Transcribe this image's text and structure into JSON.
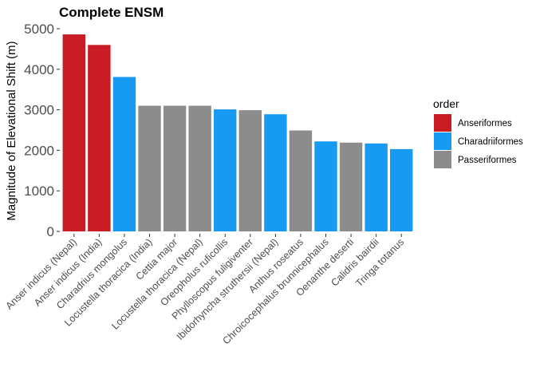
{
  "chart_data": {
    "type": "bar",
    "title": "Complete ENSM",
    "xlabel": "",
    "ylabel": "Magnitude of Elevational Shift (m)",
    "ylim": [
      0,
      5000
    ],
    "yticks": [
      0,
      1000,
      2000,
      3000,
      4000,
      5000
    ],
    "grid": false,
    "legend": {
      "title": "order",
      "placement": "right",
      "entries": [
        {
          "name": "Anseriformes",
          "color": "#c91c24"
        },
        {
          "name": "Charadriiformes",
          "color": "#179bf2"
        },
        {
          "name": "Passeriformes",
          "color": "#8c8c8c"
        }
      ]
    },
    "categories": [
      "Anser indicus (Nepal)",
      "Anser indicus (India)",
      "Charadrius mongolus",
      "Locustella thoracica (India)",
      "Cettia major",
      "Locustella thoracica (Nepal)",
      "Oreopholus ruficollis",
      "Phylloscopus fuligiventer",
      "Ibidorhyncha struthersii (Nepal)",
      "Anthus roseatus",
      "Chroicocephalus brunnicephalus",
      "Oenanthe deserti",
      "Calidris bairdii",
      "Tringa totanus"
    ],
    "values": [
      4860,
      4600,
      3810,
      3100,
      3100,
      3100,
      3010,
      2990,
      2890,
      2490,
      2220,
      2190,
      2170,
      2030
    ],
    "groups": [
      "Anseriformes",
      "Anseriformes",
      "Charadriiformes",
      "Passeriformes",
      "Passeriformes",
      "Passeriformes",
      "Charadriiformes",
      "Passeriformes",
      "Charadriiformes",
      "Passeriformes",
      "Charadriiformes",
      "Passeriformes",
      "Charadriiformes",
      "Charadriiformes"
    ]
  }
}
